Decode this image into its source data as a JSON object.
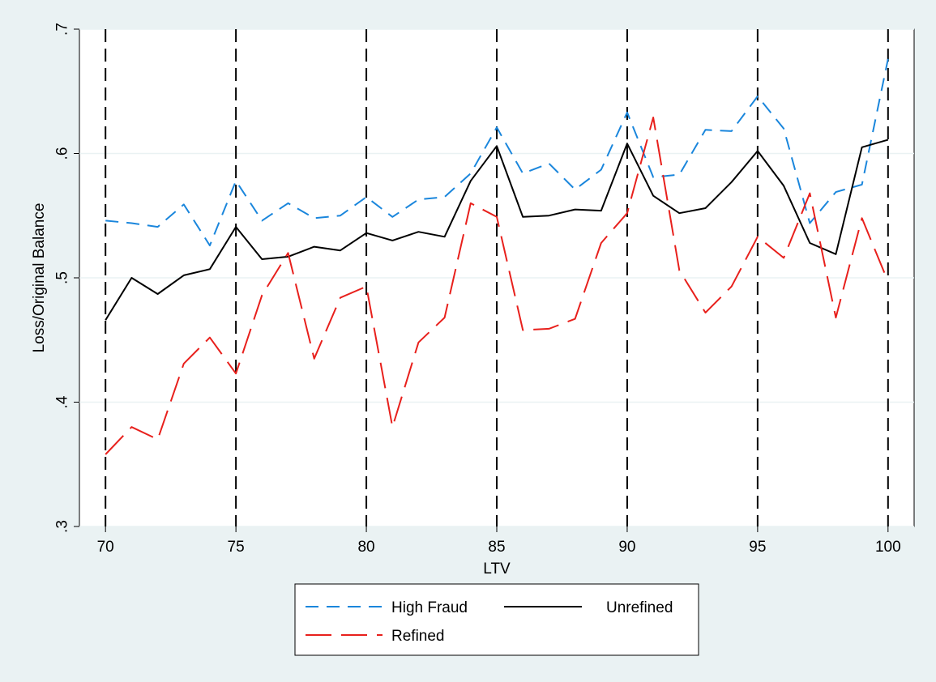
{
  "chart_data": {
    "type": "line",
    "xlabel": "LTV",
    "ylabel": "Loss/Original Balance",
    "xlim": [
      69,
      101
    ],
    "ylim": [
      0.3,
      0.7
    ],
    "x_ticks": [
      70,
      75,
      80,
      85,
      90,
      95,
      100
    ],
    "x_tick_labels": [
      "70",
      "75",
      "80",
      "85",
      "90",
      "95",
      "100"
    ],
    "y_ticks": [
      0.3,
      0.4,
      0.5,
      0.6,
      0.7
    ],
    "y_tick_labels": [
      ".3",
      ".4",
      ".5",
      ".6",
      ".7"
    ],
    "vertical_reference_lines": [
      70,
      75,
      80,
      85,
      90,
      95,
      100
    ],
    "grid": true,
    "legend_position": "bottom",
    "x": [
      70,
      71,
      72,
      73,
      74,
      75,
      76,
      77,
      78,
      79,
      80,
      81,
      82,
      83,
      84,
      85,
      86,
      87,
      88,
      89,
      90,
      91,
      92,
      93,
      94,
      95,
      96,
      97,
      98,
      99,
      100
    ],
    "series": [
      {
        "name": "High Fraud",
        "color": "#1a86dc",
        "dash": "dashed",
        "values": [
          0.546,
          0.544,
          0.541,
          0.559,
          0.526,
          0.578,
          0.546,
          0.56,
          0.548,
          0.55,
          0.565,
          0.549,
          0.563,
          0.565,
          0.584,
          0.621,
          0.584,
          0.592,
          0.571,
          0.587,
          0.633,
          0.581,
          0.583,
          0.619,
          0.618,
          0.646,
          0.62,
          0.544,
          0.569,
          0.575,
          0.676
        ]
      },
      {
        "name": "Unrefined",
        "color": "#000000",
        "dash": "solid",
        "values": [
          0.466,
          0.5,
          0.487,
          0.502,
          0.507,
          0.541,
          0.515,
          0.517,
          0.525,
          0.522,
          0.536,
          0.53,
          0.537,
          0.533,
          0.578,
          0.606,
          0.549,
          0.55,
          0.555,
          0.554,
          0.608,
          0.566,
          0.552,
          0.556,
          0.577,
          0.602,
          0.574,
          0.528,
          0.519,
          0.605,
          0.611
        ]
      },
      {
        "name": "Refined",
        "color": "#e8201c",
        "dash": "longdash",
        "values": [
          0.358,
          0.38,
          0.37,
          0.431,
          0.452,
          0.423,
          0.486,
          0.52,
          0.435,
          0.484,
          0.493,
          0.38,
          0.448,
          0.468,
          0.56,
          0.549,
          0.458,
          0.459,
          0.467,
          0.528,
          0.552,
          0.629,
          0.506,
          0.472,
          0.493,
          0.533,
          0.516,
          0.568,
          0.468,
          0.548,
          0.497
        ]
      }
    ]
  }
}
